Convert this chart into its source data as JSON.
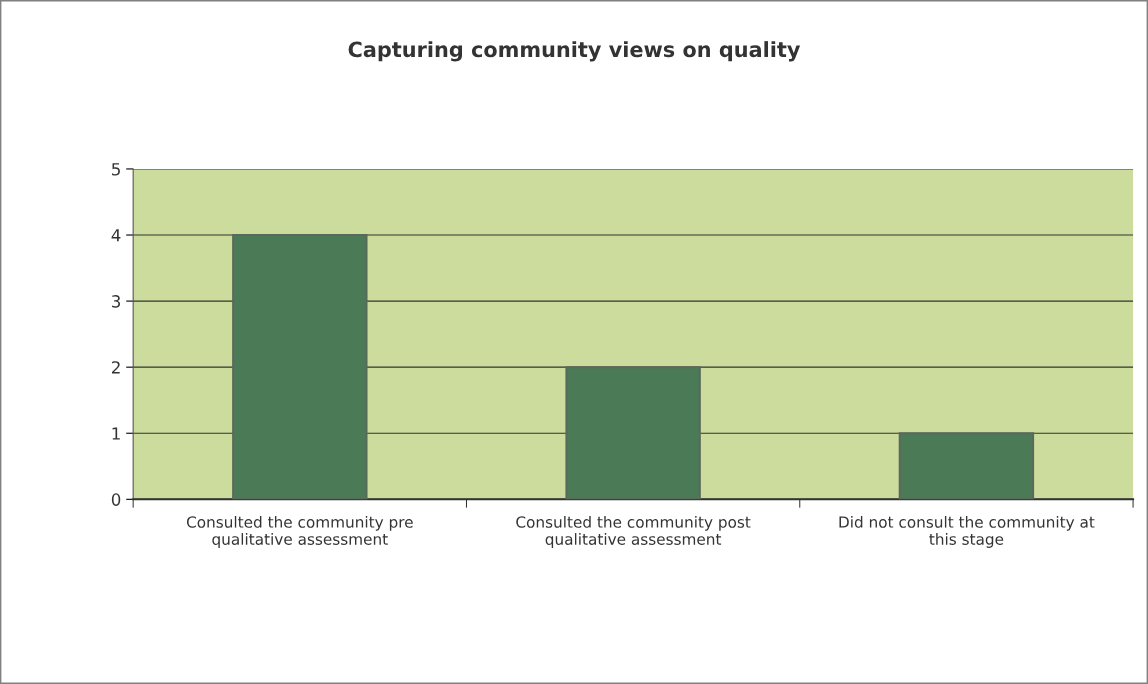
{
  "chart_data": {
    "type": "bar",
    "title": "Capturing community views on quality",
    "categories": [
      "Consulted the community pre\nqualitative assessment",
      "Consulted the community post\nqualitative assessment",
      "Did not consult the community at\nthis stage"
    ],
    "values": [
      4,
      2,
      1
    ],
    "color": "#4b7a57",
    "ylim": [
      0,
      5
    ],
    "yticks": [
      0,
      1,
      2,
      3,
      4,
      5
    ],
    "grid": "y",
    "legend": false
  }
}
